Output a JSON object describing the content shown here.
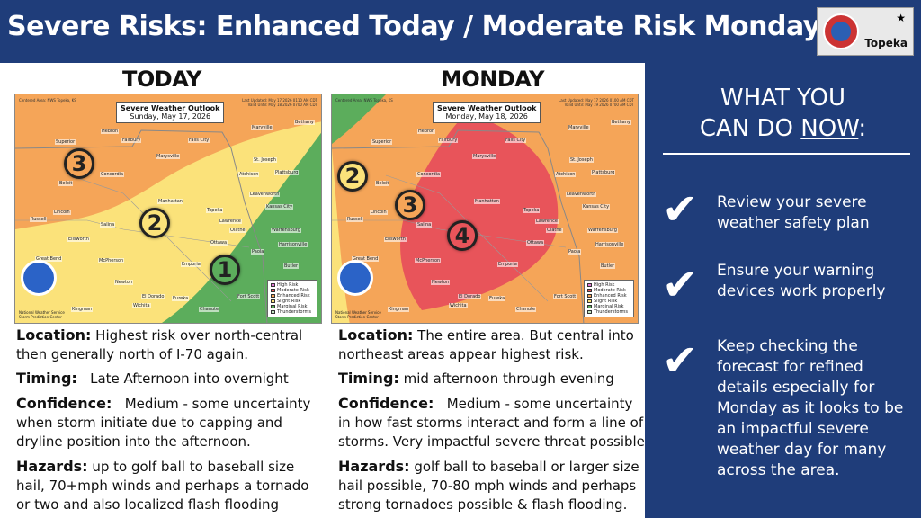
{
  "header": {
    "title": "Severe Risks: Enhanced Today / Moderate Risk Monday",
    "office": "Topeka"
  },
  "colors": {
    "header_bg": "#1f3d7a",
    "high": "#e27ad6",
    "moderate": "#e8545a",
    "enhanced": "#f5a558",
    "slight": "#fbe27a",
    "marginal": "#5cad5c",
    "tstorm": "#c2e6c2"
  },
  "map_common": {
    "centered": "Centered Area: NWS Topeka, KS",
    "noaa_label": "National Weather Service Storm Prediction Center",
    "legend": [
      {
        "num": "5",
        "label": "High Risk",
        "color": "#e27ad6"
      },
      {
        "num": "4",
        "label": "Moderate Risk",
        "color": "#e8545a"
      },
      {
        "num": "3",
        "label": "Enhanced Risk",
        "color": "#f5a558"
      },
      {
        "num": "2",
        "label": "Slight Risk",
        "color": "#fbe27a"
      },
      {
        "num": "1",
        "label": "Marginal Risk",
        "color": "#5cad5c"
      },
      {
        "num": "T",
        "label": "Thunderstorms",
        "color": "#c2e6c2"
      }
    ],
    "cities": [
      "Hebron",
      "Fairbury",
      "Superior",
      "Falls City",
      "Bethany",
      "Maryville",
      "St. Joseph",
      "Concordia",
      "Marysville",
      "Atchison",
      "Plattsburg",
      "Beloit",
      "Leavenworth",
      "Manhattan",
      "Topeka",
      "Kansas City",
      "Lincoln",
      "Russell",
      "Salina",
      "Lawrence",
      "Olathe",
      "Warrensburg",
      "Ellsworth",
      "Ottawa",
      "Paola",
      "Harrisonville",
      "Great Bend",
      "McPherson",
      "Emporia",
      "Butler",
      "Newton",
      "El Dorado",
      "Eureka",
      "Fort Scott",
      "Kingman",
      "Wichita",
      "Chanute"
    ]
  },
  "today": {
    "heading": "TODAY",
    "outlook_title": "Severe Weather Outlook",
    "outlook_date": "Sunday, May 17, 2026",
    "updated": "Last Updated: May 17 2026 0110 AM CDT",
    "valid": "Valid Until: May 18 2026 0700 AM CDT",
    "location_label": "Location:",
    "location_text": "Highest risk over north-central then generally north of I-70 again.",
    "timing_label": "Timing:",
    "timing_text": "Late Afternoon into overnight",
    "confidence_label": "Confidence:",
    "confidence_text": "Medium - some uncertainty when storm initiate due to capping and dryline position into the afternoon.",
    "hazards_label": "Hazards:",
    "hazards_text": "up to golf ball to baseball size hail, 70+mph winds and perhaps a tornado or two and also localized flash flooding",
    "risks": [
      "3",
      "2",
      "1"
    ]
  },
  "monday": {
    "heading": "MONDAY",
    "outlook_title": "Severe Weather Outlook",
    "outlook_date": "Monday, May 18, 2026",
    "updated": "Last Updated: May 17 2026 0100 AM CDT",
    "valid": "Valid Until: May 19 2026 0700 AM CDT",
    "location_label": "Location:",
    "location_text": "The entire area. But central into northeast areas appear highest risk.",
    "timing_label": "Timing:",
    "timing_text": "mid afternoon through evening",
    "confidence_label": "Confidence:",
    "confidence_text": "Medium - some uncertainty in how fast storms interact and form a line of storms. Very impactful severe threat possible",
    "hazards_label": "Hazards:",
    "hazards_text": "golf ball to baseball or larger size hail possible, 70-80 mph winds and perhaps strong tornadoes possible & flash flooding.",
    "risks": [
      "2",
      "3",
      "4"
    ]
  },
  "sidebar": {
    "heading_line1": "WHAT YOU",
    "heading_line2_pre": "CAN DO ",
    "heading_line2_u": "NOW",
    "heading_line2_post": ":",
    "items": [
      "Review your severe weather safety plan",
      "Ensure your warning devices work properly",
      "Keep checking the forecast for refined details especially for Monday as it looks to be an impactful severe weather day for many across the area."
    ],
    "check_icon": "checkmark-icon"
  }
}
